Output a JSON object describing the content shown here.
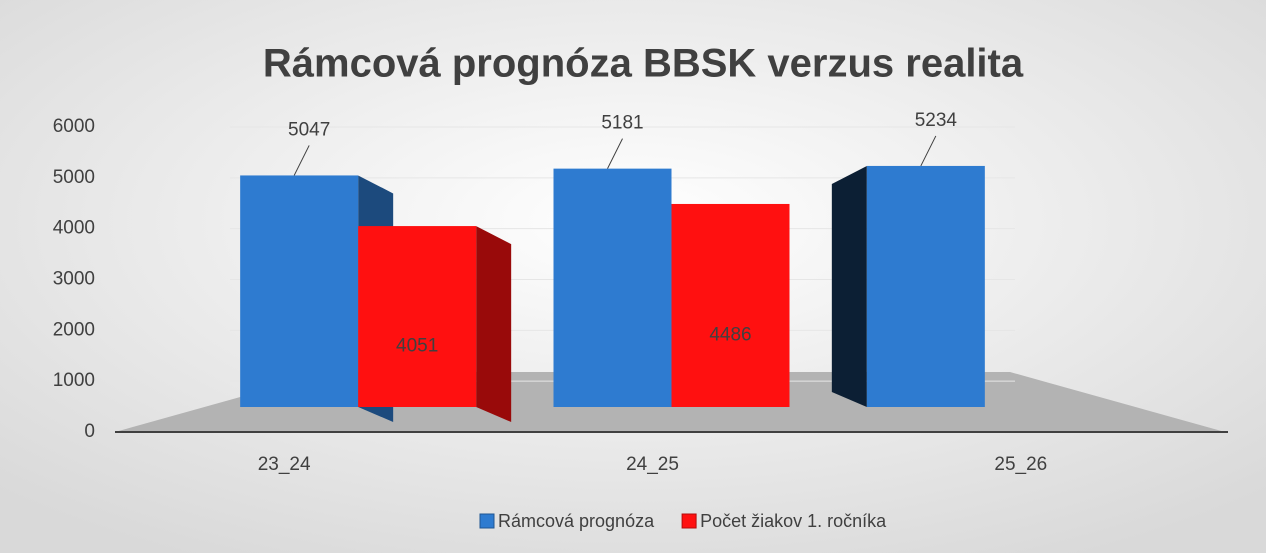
{
  "chart_data": {
    "type": "bar3d",
    "title": "Rámcová prognóza BBSK  verzus realita",
    "categories": [
      "23_24",
      "24_25",
      "25_26"
    ],
    "series": [
      {
        "name": "Rámcová prognóza",
        "color": "#2e7bd0",
        "values": [
          5047,
          5181,
          5234
        ]
      },
      {
        "name": "Počet žiakov 1. ročníka",
        "color": "#ff1010",
        "values": [
          4051,
          4486,
          null
        ]
      }
    ],
    "ylim": [
      0,
      6000
    ],
    "yticks": [
      0,
      1000,
      2000,
      3000,
      4000,
      5000,
      6000
    ],
    "grid": true,
    "legend": "bottom"
  }
}
